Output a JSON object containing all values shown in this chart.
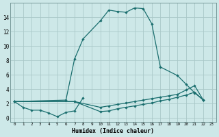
{
  "xlabel": "Humidex (Indice chaleur)",
  "background_color": "#cde8e8",
  "grid_color": "#aac8c8",
  "line_color": "#1a6e6e",
  "xlim": [
    -0.5,
    23.5
  ],
  "ylim": [
    -0.5,
    16.0
  ],
  "xtick_positions": [
    0,
    1,
    2,
    3,
    4,
    5,
    6,
    7,
    8,
    9,
    10,
    11,
    12,
    13,
    14,
    15,
    16,
    17,
    18,
    19,
    20,
    21,
    22,
    23
  ],
  "xtick_labels": [
    "0",
    "1",
    "2",
    "3",
    "4",
    "5",
    "6",
    "7",
    "8",
    "9",
    "10",
    "11",
    "12",
    "13",
    "14",
    "15",
    "16",
    "17",
    "18",
    "19",
    "20",
    "21",
    "22",
    "23"
  ],
  "ytick_values": [
    0,
    2,
    4,
    6,
    8,
    10,
    12,
    14
  ],
  "series1_x": [
    0,
    1,
    2,
    3,
    4,
    5,
    6,
    7,
    8
  ],
  "series1_y": [
    2.3,
    1.5,
    1.1,
    1.1,
    0.7,
    0.2,
    0.8,
    1.0,
    2.8
  ],
  "series2_x": [
    0,
    6,
    7,
    8,
    10,
    11,
    12,
    13,
    14,
    15,
    16,
    17,
    19,
    20,
    21,
    22
  ],
  "series2_y": [
    2.3,
    2.5,
    8.2,
    11.0,
    13.5,
    15.0,
    14.8,
    14.7,
    15.3,
    15.2,
    13.1,
    7.1,
    5.9,
    4.7,
    3.5,
    2.5
  ],
  "series3_x": [
    0,
    7,
    10,
    11,
    12,
    13,
    14,
    15,
    16,
    17,
    18,
    19,
    20,
    21,
    22
  ],
  "series3_y": [
    2.3,
    2.3,
    1.5,
    1.7,
    1.9,
    2.1,
    2.3,
    2.5,
    2.7,
    2.9,
    3.1,
    3.3,
    3.9,
    4.5,
    2.5
  ],
  "series4_x": [
    0,
    7,
    10,
    11,
    12,
    13,
    14,
    15,
    16,
    17,
    18,
    19,
    20,
    21,
    22
  ],
  "series4_y": [
    2.3,
    2.3,
    0.9,
    1.0,
    1.3,
    1.5,
    1.7,
    1.9,
    2.1,
    2.4,
    2.6,
    2.9,
    3.2,
    3.6,
    2.5
  ]
}
